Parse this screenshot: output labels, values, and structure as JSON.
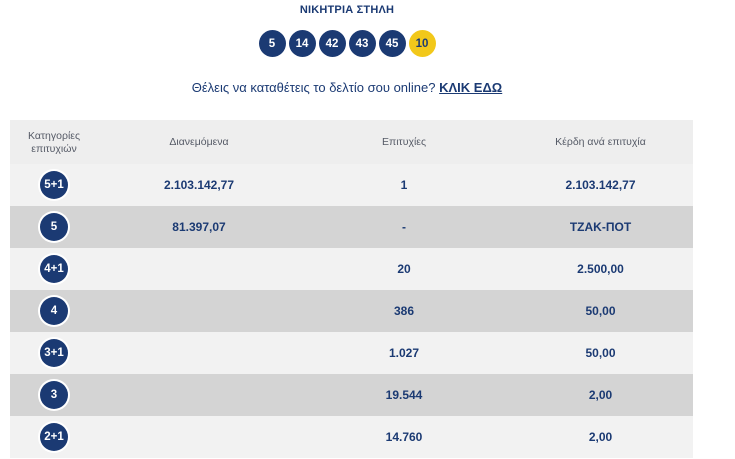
{
  "draw": {
    "title": "ΝΙΚΗΤΡΙΑ ΣΤΗΛΗ",
    "numbers": [
      "5",
      "14",
      "42",
      "43",
      "45"
    ],
    "joker": "10"
  },
  "cta": {
    "text": "Θέλεις να καταθέτεις το δελτίο σου online?",
    "link": "ΚΛΙΚ ΕΔΩ"
  },
  "table": {
    "headers": {
      "category": "Κατηγορίες επιτυχιών",
      "distributed": "Διανεμόμενα",
      "winners": "Επιτυχίες",
      "prize": "Κέρδη ανά επιτυχία"
    },
    "rows": [
      {
        "category": "5+1",
        "distributed": "2.103.142,77",
        "winners": "1",
        "prize": "2.103.142,77"
      },
      {
        "category": "5",
        "distributed": "81.397,07",
        "winners": "-",
        "prize": "ΤΖΑΚ-ΠΟΤ"
      },
      {
        "category": "4+1",
        "distributed": "",
        "winners": "20",
        "prize": "2.500,00"
      },
      {
        "category": "4",
        "distributed": "",
        "winners": "386",
        "prize": "50,00"
      },
      {
        "category": "3+1",
        "distributed": "",
        "winners": "1.027",
        "prize": "50,00"
      },
      {
        "category": "3",
        "distributed": "",
        "winners": "19.544",
        "prize": "2,00"
      },
      {
        "category": "2+1",
        "distributed": "",
        "winners": "14.760",
        "prize": "2,00"
      }
    ]
  },
  "colors": {
    "navy": "#1b3a73",
    "joker_yellow": "#f2c81a",
    "row_light": "#f2f2f2",
    "row_dark": "#d4d4d4"
  }
}
